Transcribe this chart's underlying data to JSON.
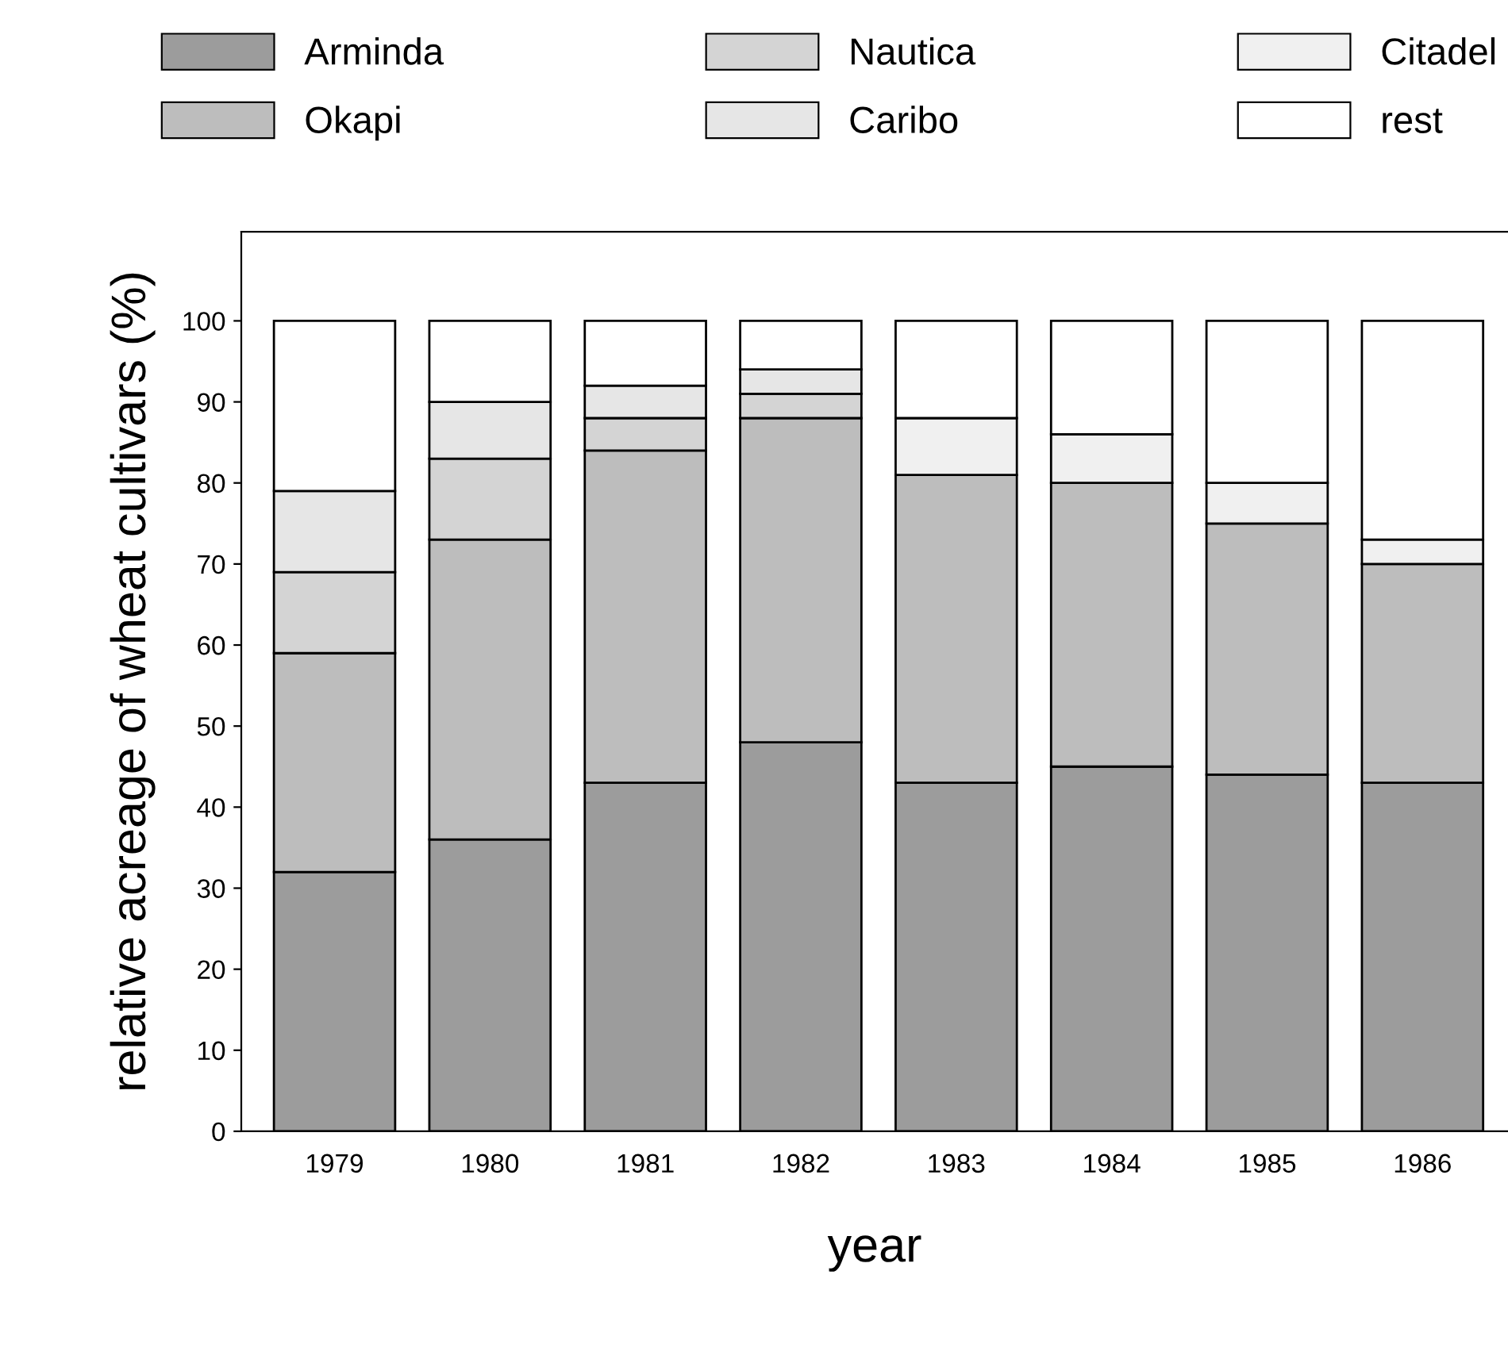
{
  "chart_data": {
    "type": "bar",
    "stacked": true,
    "xlabel": "year",
    "ylabel": "relative acreage of wheat cultivars (%)",
    "categories": [
      "1979",
      "1980",
      "1981",
      "1982",
      "1983",
      "1984",
      "1985",
      "1986"
    ],
    "series": [
      {
        "name": "Arminda",
        "color": "#9c9c9c",
        "values": [
          32,
          36,
          43,
          48,
          43,
          45,
          44,
          43
        ]
      },
      {
        "name": "Okapi",
        "color": "#bdbdbd",
        "values": [
          27,
          37,
          41,
          40,
          38,
          35,
          31,
          27
        ]
      },
      {
        "name": "Nautica",
        "color": "#d4d4d4",
        "values": [
          10,
          10,
          4,
          3,
          null,
          null,
          null,
          null
        ]
      },
      {
        "name": "Caribo",
        "color": "#e6e6e6",
        "values": [
          10,
          7,
          4,
          3,
          null,
          null,
          null,
          null
        ]
      },
      {
        "name": "Citadel",
        "color": "#f0f0f0",
        "values": [
          null,
          null,
          null,
          null,
          7,
          6,
          5,
          3
        ]
      },
      {
        "name": "rest",
        "color": "#ffffff",
        "values": [
          21,
          10,
          8,
          6,
          12,
          14,
          20,
          27
        ]
      }
    ],
    "ylim": [
      0,
      111
    ],
    "yticks": [
      0,
      10,
      20,
      30,
      40,
      50,
      60,
      70,
      80,
      90,
      100
    ],
    "grid": false,
    "legend": "top"
  }
}
